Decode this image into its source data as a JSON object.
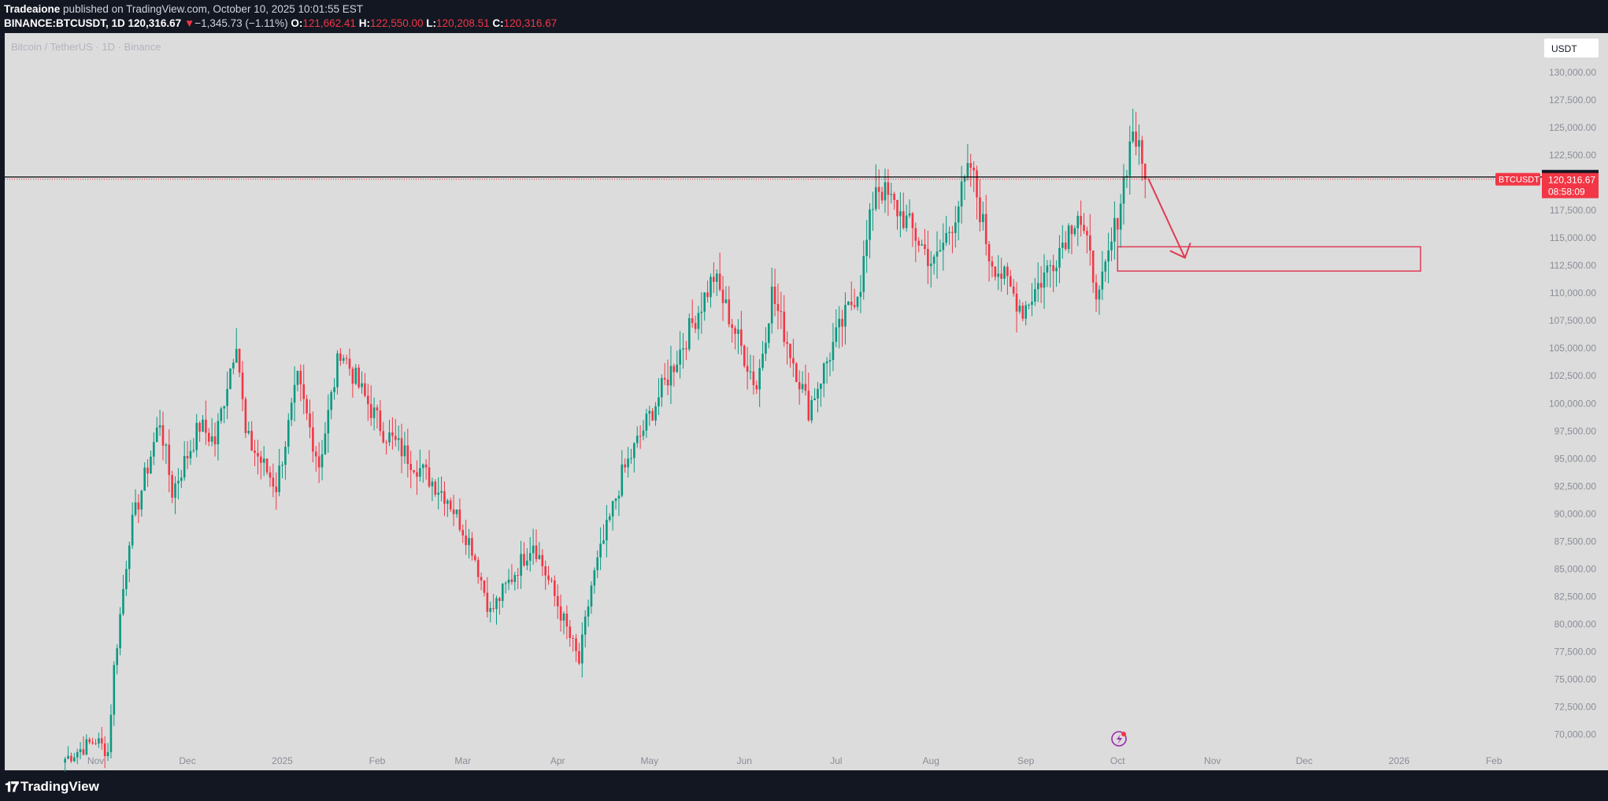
{
  "header": {
    "publisher": "Tradeaione",
    "published_text": "published on TradingView.com, October 10, 2025 10:01:55 EST",
    "symbol": "BINANCE:BTCUSDT, 1D",
    "last": "120,316.67",
    "change_arrow": "▼",
    "change": "−1,345.73 (−1.11%)",
    "o_label": "O:",
    "o_value": "121,662.41",
    "h_label": "H:",
    "h_value": "122,550.00",
    "l_label": "L:",
    "l_value": "120,208.51",
    "c_label": "C:",
    "c_value": "120,316.67"
  },
  "footer": {
    "brand": "TradingView",
    "logo_icon": "tradingview-logo-icon"
  },
  "colors": {
    "background": "#131722",
    "plot_bg": "#dcdcdc",
    "up": "#089981",
    "down": "#f23645",
    "text_muted": "#8a8d97",
    "annotation": "#e03b55",
    "line": "#000000"
  },
  "chart_data": {
    "type": "candlestick",
    "title": "Bitcoin / TetherUS · 1D · Binance",
    "currency": "USDT",
    "symbol_label": "BTCUSDT",
    "ylim": [
      69000,
      131500
    ],
    "y_ticks": [
      "70,000.00",
      "72,500.00",
      "75,000.00",
      "77,500.00",
      "80,000.00",
      "82,500.00",
      "85,000.00",
      "87,500.00",
      "90,000.00",
      "92,500.00",
      "95,000.00",
      "97,500.00",
      "100,000.00",
      "102,500.00",
      "105,000.00",
      "107,500.00",
      "110,000.00",
      "112,500.00",
      "115,000.00",
      "117,500.00",
      "120,000.00",
      "122,500.00",
      "125,000.00",
      "127,500.00",
      "130,000.00"
    ],
    "x_ticks": [
      {
        "label": "Nov",
        "date": "2024-11-01"
      },
      {
        "label": "Dec",
        "date": "2024-12-01"
      },
      {
        "label": "2025",
        "date": "2025-01-01"
      },
      {
        "label": "Feb",
        "date": "2025-02-01"
      },
      {
        "label": "Mar",
        "date": "2025-03-01"
      },
      {
        "label": "Apr",
        "date": "2025-04-01"
      },
      {
        "label": "May",
        "date": "2025-05-01"
      },
      {
        "label": "Jun",
        "date": "2025-06-01"
      },
      {
        "label": "Jul",
        "date": "2025-07-01"
      },
      {
        "label": "Aug",
        "date": "2025-08-01"
      },
      {
        "label": "Sep",
        "date": "2025-09-01"
      },
      {
        "label": "Oct",
        "date": "2025-10-01"
      },
      {
        "label": "Nov",
        "date": "2025-11-01"
      },
      {
        "label": "Dec",
        "date": "2025-12-01"
      },
      {
        "label": "2026",
        "date": "2026-01-01"
      },
      {
        "label": "Feb",
        "date": "2026-02-01"
      }
    ],
    "key_points": [
      [
        "2024-10-22",
        67800
      ],
      [
        "2024-11-01",
        69500
      ],
      [
        "2024-11-05",
        68400
      ],
      [
        "2024-11-07",
        76000
      ],
      [
        "2024-11-12",
        88000
      ],
      [
        "2024-11-22",
        98500
      ],
      [
        "2024-11-26",
        92000
      ],
      [
        "2024-12-05",
        98000
      ],
      [
        "2024-12-10",
        96500
      ],
      [
        "2024-12-17",
        106000
      ],
      [
        "2024-12-20",
        97000
      ],
      [
        "2024-12-30",
        92500
      ],
      [
        "2025-01-06",
        102000
      ],
      [
        "2025-01-13",
        94500
      ],
      [
        "2025-01-20",
        105000
      ],
      [
        "2025-01-27",
        101000
      ],
      [
        "2025-02-03",
        97500
      ],
      [
        "2025-02-24",
        91500
      ],
      [
        "2025-03-04",
        87000
      ],
      [
        "2025-03-10",
        81000
      ],
      [
        "2025-03-24",
        87500
      ],
      [
        "2025-03-31",
        82500
      ],
      [
        "2025-04-08",
        76500
      ],
      [
        "2025-04-12",
        83500
      ],
      [
        "2025-04-22",
        93500
      ],
      [
        "2025-05-08",
        103000
      ],
      [
        "2025-05-22",
        111500
      ],
      [
        "2025-06-05",
        101500
      ],
      [
        "2025-06-10",
        110000
      ],
      [
        "2025-06-22",
        99500
      ],
      [
        "2025-07-01",
        106000
      ],
      [
        "2025-07-09",
        111000
      ],
      [
        "2025-07-14",
        120000
      ],
      [
        "2025-07-24",
        116500
      ],
      [
        "2025-08-02",
        112500
      ],
      [
        "2025-08-08",
        116500
      ],
      [
        "2025-08-14",
        121500
      ],
      [
        "2025-08-20",
        113500
      ],
      [
        "2025-08-31",
        108500
      ],
      [
        "2025-09-10",
        113000
      ],
      [
        "2025-09-18",
        117500
      ],
      [
        "2025-09-25",
        109500
      ],
      [
        "2025-10-01",
        117000
      ],
      [
        "2025-10-06",
        125000
      ],
      [
        "2025-10-10",
        120300
      ]
    ],
    "last_close": 120316.67,
    "last_price_label": "120,316.67",
    "countdown": "08:58:09",
    "horizontal_line": {
      "value": 120524.42,
      "label": "120,524.42"
    },
    "annotations": {
      "zone": {
        "start": "2025-10-01",
        "end": "2026-01-08",
        "top": 114200,
        "bottom": 112000
      },
      "arrow": {
        "from": [
          "2025-10-11",
          120400
        ],
        "to": [
          "2025-10-23",
          113200
        ]
      }
    },
    "grid": false,
    "legend": "top-left"
  }
}
